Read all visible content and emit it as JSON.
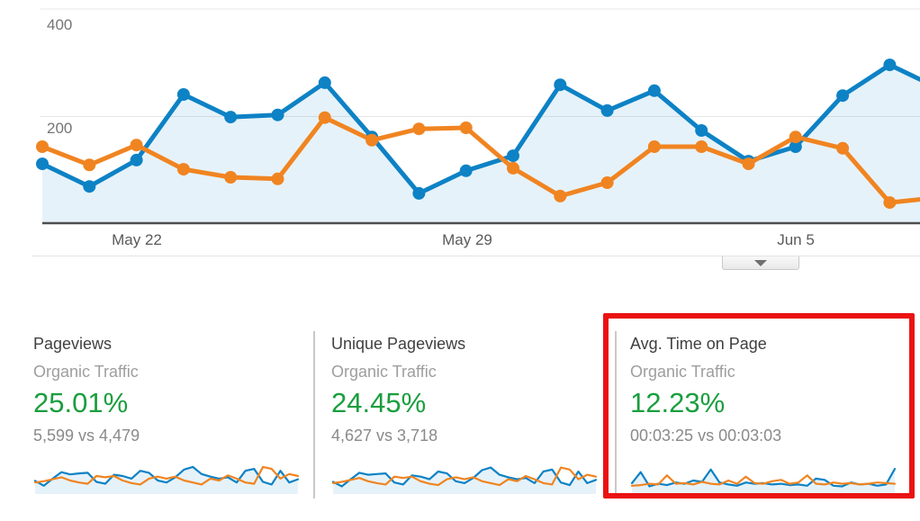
{
  "colors": {
    "series_current_blue": "#0d82c5",
    "series_previous_orange": "#f08421",
    "area_fill_blue": "rgba(13,130,197,0.10)",
    "positive_change_green": "#1a9e3e",
    "highlight_red": "#eb1212",
    "gridline_gray": "#e7e7e7",
    "axis_baseline_gray": "#4c4c4c"
  },
  "chart_data": [
    {
      "id": "main-trend",
      "type": "line",
      "title": "",
      "xlabel": "",
      "ylabel": "",
      "ylim": [
        0,
        417
      ],
      "grid": "on",
      "gridline_values": [
        200,
        400
      ],
      "y_axis_labels": [
        "400",
        "200"
      ],
      "x_tick_labels": [
        "May 22",
        "May 29",
        "Jun 5"
      ],
      "x_tick_indices": [
        2,
        9,
        16
      ],
      "x": [
        "May 20",
        "May 21",
        "May 22",
        "May 23",
        "May 24",
        "May 25",
        "May 26",
        "May 27",
        "May 28",
        "May 29",
        "May 30",
        "May 31",
        "Jun 1",
        "Jun 2",
        "Jun 3",
        "Jun 4",
        "Jun 5",
        "Jun 6",
        "Jun 7",
        "Jun 8"
      ],
      "legend_position": "none",
      "series": [
        {
          "name": "current",
          "color": "#0d82c5",
          "area_fill": true,
          "values": [
            112,
            70,
            119,
            241,
            199,
            203,
            263,
            162,
            57,
            99,
            127,
            259,
            211,
            248,
            174,
            117,
            144,
            239,
            296,
            254
          ]
        },
        {
          "name": "previous",
          "color": "#f08421",
          "area_fill": false,
          "values": [
            144,
            110,
            147,
            102,
            87,
            84,
            198,
            156,
            177,
            179,
            104,
            52,
            77,
            144,
            144,
            112,
            162,
            141,
            40,
            49
          ]
        }
      ]
    },
    {
      "id": "spark-pageviews",
      "type": "line",
      "grid": "off",
      "legend_position": "none",
      "series": [
        {
          "name": "current",
          "color": "#0d82c5",
          "area_fill": true,
          "values": [
            35,
            20,
            42,
            62,
            55,
            58,
            60,
            32,
            26,
            54,
            50,
            42,
            66,
            60,
            36,
            30,
            46,
            70,
            78,
            56,
            48,
            42,
            46,
            30,
            66,
            72,
            32,
            24,
            66,
            30,
            40
          ]
        },
        {
          "name": "previous",
          "color": "#f08421",
          "area_fill": false,
          "values": [
            30,
            34,
            40,
            46,
            36,
            30,
            26,
            50,
            46,
            50,
            36,
            28,
            24,
            42,
            48,
            42,
            48,
            36,
            30,
            24,
            42,
            36,
            52,
            42,
            30,
            26,
            78,
            72,
            42,
            56,
            50
          ]
        }
      ]
    },
    {
      "id": "spark-unique-pageviews",
      "type": "line",
      "grid": "off",
      "legend_position": "none",
      "series": [
        {
          "name": "current",
          "color": "#0d82c5",
          "area_fill": true,
          "values": [
            32,
            18,
            40,
            60,
            54,
            56,
            58,
            30,
            24,
            52,
            48,
            40,
            64,
            58,
            34,
            28,
            44,
            68,
            76,
            54,
            46,
            40,
            44,
            28,
            64,
            70,
            30,
            22,
            64,
            28,
            38
          ]
        },
        {
          "name": "previous",
          "color": "#f08421",
          "area_fill": false,
          "values": [
            28,
            32,
            38,
            44,
            34,
            28,
            24,
            48,
            44,
            48,
            34,
            26,
            22,
            40,
            46,
            40,
            46,
            34,
            28,
            22,
            40,
            34,
            50,
            40,
            28,
            24,
            76,
            70,
            40,
            54,
            48
          ]
        }
      ]
    },
    {
      "id": "spark-avg-time-on-page",
      "type": "line",
      "grid": "off",
      "legend_position": "none",
      "series": [
        {
          "name": "current",
          "color": "#0d82c5",
          "area_fill": true,
          "values": [
            28,
            62,
            18,
            26,
            22,
            30,
            26,
            36,
            32,
            70,
            30,
            24,
            20,
            30,
            26,
            28,
            24,
            26,
            22,
            24,
            20,
            42,
            38,
            20,
            18,
            30,
            24,
            26,
            20,
            24,
            72
          ]
        },
        {
          "name": "previous",
          "color": "#f08421",
          "area_fill": false,
          "values": [
            20,
            22,
            26,
            24,
            52,
            26,
            28,
            24,
            32,
            26,
            24,
            36,
            26,
            48,
            28,
            26,
            34,
            38,
            26,
            30,
            52,
            26,
            24,
            30,
            26,
            28,
            24,
            26,
            30,
            28,
            26
          ]
        }
      ]
    }
  ],
  "cards": [
    {
      "title": "Pageviews",
      "segment": "Organic Traffic",
      "change": "25.01%",
      "comparison": "5,599 vs 4,479"
    },
    {
      "title": "Unique Pageviews",
      "segment": "Organic Traffic",
      "change": "24.45%",
      "comparison": "4,627 vs 3,718"
    },
    {
      "title": "Avg. Time on Page",
      "segment": "Organic Traffic",
      "change": "12.23%",
      "comparison": "00:03:25 vs 00:03:03",
      "highlighted": true
    }
  ]
}
